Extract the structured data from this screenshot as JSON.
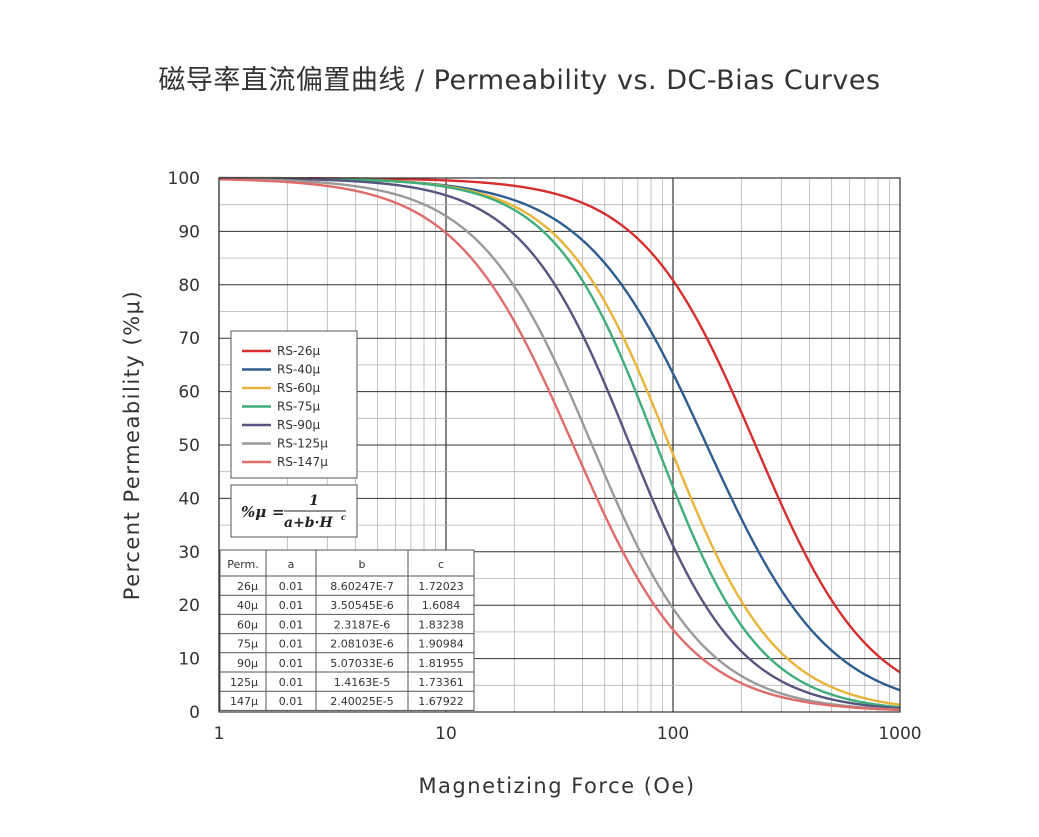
{
  "chart_data": {
    "type": "line",
    "title": "磁导率直流偏置曲线 / Permeability vs. DC-Bias Curves",
    "xlabel": "Magnetizing Force (Oe)",
    "ylabel": "Percent Permeability (%μ)",
    "xscale": "log",
    "xlim": [
      1,
      1000
    ],
    "ylim": [
      0,
      100
    ],
    "x_ticks": [
      "1",
      "10",
      "100",
      "1000"
    ],
    "y_ticks": [
      "0",
      "10",
      "20",
      "30",
      "40",
      "50",
      "60",
      "70",
      "80",
      "90",
      "100"
    ],
    "grid": true,
    "legend_position": "left-middle",
    "formula": {
      "lhs": "%μ",
      "equals": "=",
      "numerator": "1",
      "denominator": "a+b·H",
      "exponent": "c"
    },
    "series": [
      {
        "name": "RS-26μ",
        "color": "#d62f2f",
        "a": 0.01,
        "b": 8.60247e-07,
        "c": 1.72023
      },
      {
        "name": "RS-40μ",
        "color": "#2f5e8e",
        "a": 0.01,
        "b": 3.50545e-06,
        "c": 1.6084
      },
      {
        "name": "RS-60μ",
        "color": "#e8b43a",
        "a": 0.01,
        "b": 2.3187e-06,
        "c": 1.83238
      },
      {
        "name": "RS-75μ",
        "color": "#3fae7a",
        "a": 0.01,
        "b": 2.08103e-06,
        "c": 1.90984
      },
      {
        "name": "RS-90μ",
        "color": "#55557f",
        "a": 0.01,
        "b": 5.07033e-06,
        "c": 1.81955
      },
      {
        "name": "RS-125μ",
        "color": "#9a9a9a",
        "a": 0.01,
        "b": 1.4163e-05,
        "c": 1.73361
      },
      {
        "name": "RS-147μ",
        "color": "#e06b6b",
        "a": 0.01,
        "b": 2.40025e-05,
        "c": 1.67922
      }
    ],
    "table": {
      "headers": [
        "Perm.",
        "a",
        "b",
        "c"
      ],
      "rows": [
        [
          "26μ",
          "0.01",
          "8.60247E-7",
          "1.72023"
        ],
        [
          "40μ",
          "0.01",
          "3.50545E-6",
          "1.6084"
        ],
        [
          "60μ",
          "0.01",
          "2.3187E-6",
          "1.83238"
        ],
        [
          "75μ",
          "0.01",
          "2.08103E-6",
          "1.90984"
        ],
        [
          "90μ",
          "0.01",
          "5.07033E-6",
          "1.81955"
        ],
        [
          "125μ",
          "0.01",
          "1.4163E-5",
          "1.73361"
        ],
        [
          "147μ",
          "0.01",
          "2.40025E-5",
          "1.67922"
        ]
      ]
    }
  }
}
